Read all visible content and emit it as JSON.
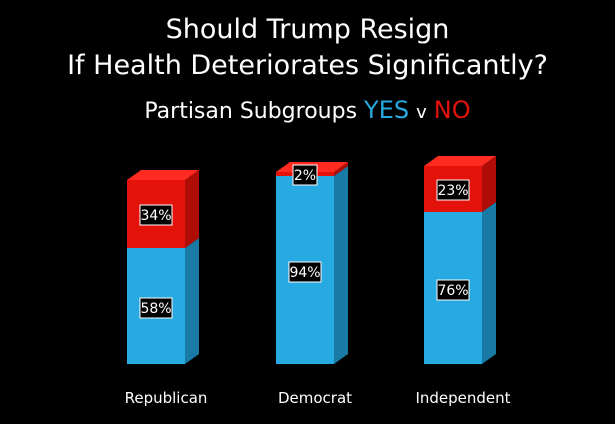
{
  "chart_data": {
    "type": "bar",
    "stacked": true,
    "style": "3d",
    "title": [
      "Should Trump Resign",
      "If Health Deteriorates Significantly?"
    ],
    "subtitle": {
      "prefix": "Partisan Subgroups",
      "yes_label": "YES",
      "separator": "v",
      "no_label": "NO"
    },
    "categories": [
      "Republican",
      "Democrat",
      "Independent"
    ],
    "series": [
      {
        "name": "YES",
        "values": [
          58,
          94,
          76
        ],
        "labels": [
          "58%",
          "94%",
          "76%"
        ]
      },
      {
        "name": "NO",
        "values": [
          34,
          2,
          23
        ],
        "labels": [
          "34%",
          "2%",
          "23%"
        ]
      }
    ],
    "ylim": [
      0,
      100
    ],
    "colors": {
      "yes_front": "#27a9e1",
      "yes_side": "#1a7aa6",
      "yes_top": "#5ec3ee",
      "no_front": "#e3120b",
      "no_side": "#b00c07",
      "no_top": "#ff2a20",
      "background": "#000000",
      "text": "#ffffff",
      "yes_text": "#27a9e1",
      "no_text": "#e3120b"
    }
  }
}
